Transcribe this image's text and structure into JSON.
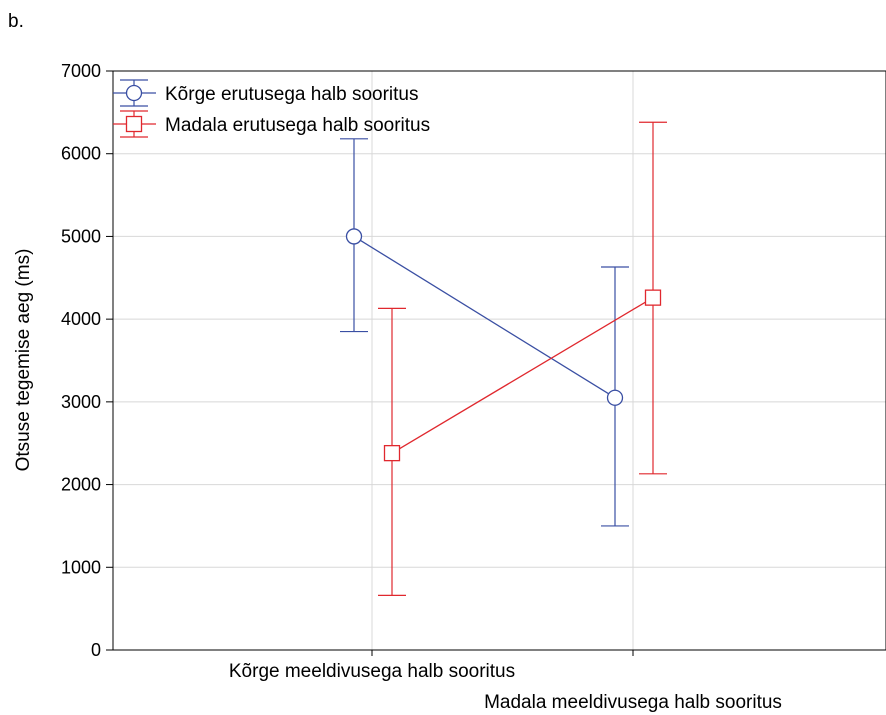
{
  "chart_data": {
    "type": "line",
    "panel_label": "b.",
    "ylabel": "Otsuse tegemise aeg (ms)",
    "xlabel": "",
    "ylim": [
      0,
      7000
    ],
    "yticks": [
      0,
      1000,
      2000,
      3000,
      4000,
      5000,
      6000,
      7000
    ],
    "categories": [
      "Kõrge meeldivusega halb sooritus",
      "Madala meeldivusega halb sooritus"
    ],
    "grid": true,
    "legend_position": "top-left",
    "series": [
      {
        "name": "Kõrge erutusega halb sooritus",
        "color": "#3a4fa3",
        "marker": "circle",
        "values": [
          5000,
          3050
        ],
        "error_low": [
          3850,
          1500
        ],
        "error_high": [
          6180,
          4630
        ]
      },
      {
        "name": "Madala erutusega halb sooritus",
        "color": "#e0282e",
        "marker": "square",
        "values": [
          2380,
          4260
        ],
        "error_low": [
          660,
          2130
        ],
        "error_high": [
          4130,
          6380
        ]
      }
    ]
  }
}
